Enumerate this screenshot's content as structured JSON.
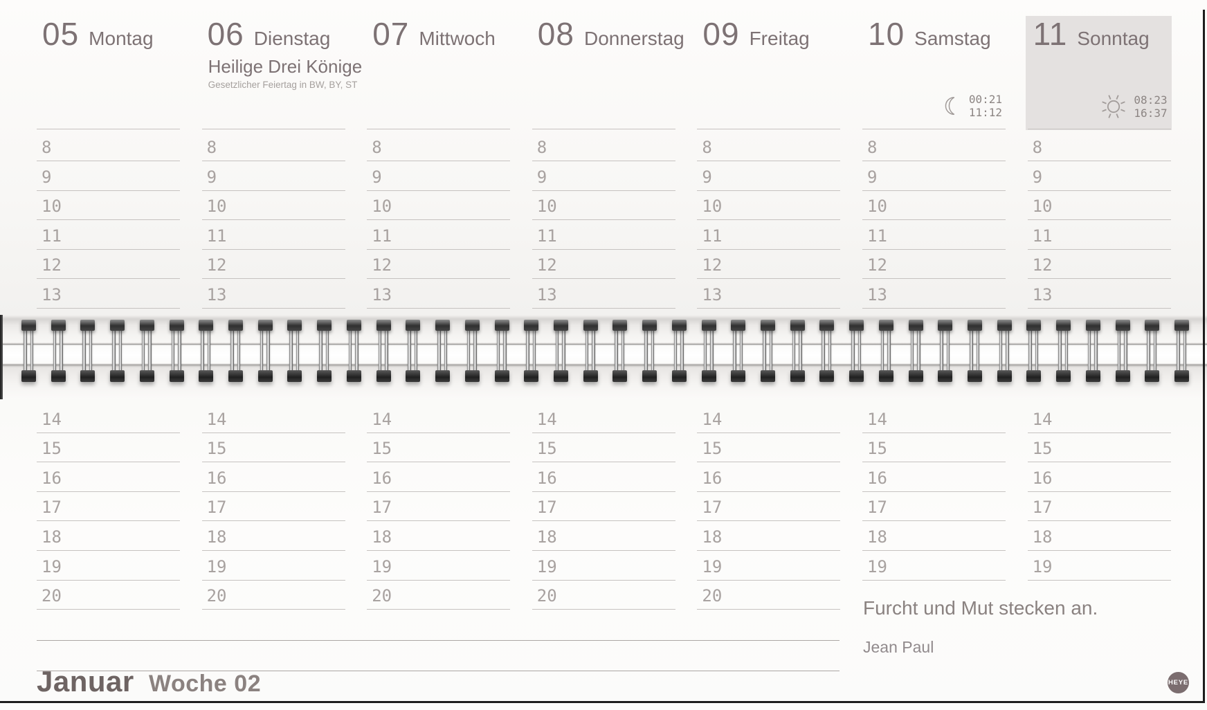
{
  "days": [
    {
      "number": "05",
      "name": "Montag",
      "highlighted": false,
      "afternoon_hours": [
        "14",
        "15",
        "16",
        "17",
        "18",
        "19",
        "20"
      ]
    },
    {
      "number": "06",
      "name": "Dienstag",
      "highlighted": false,
      "holiday": "Heilige Drei Könige",
      "holiday_note": "Gesetzlicher Feiertag in BW, BY, ST",
      "afternoon_hours": [
        "14",
        "15",
        "16",
        "17",
        "18",
        "19",
        "20"
      ]
    },
    {
      "number": "07",
      "name": "Mittwoch",
      "highlighted": false,
      "afternoon_hours": [
        "14",
        "15",
        "16",
        "17",
        "18",
        "19",
        "20"
      ]
    },
    {
      "number": "08",
      "name": "Donnerstag",
      "highlighted": false,
      "afternoon_hours": [
        "14",
        "15",
        "16",
        "17",
        "18",
        "19",
        "20"
      ]
    },
    {
      "number": "09",
      "name": "Freitag",
      "highlighted": false,
      "afternoon_hours": [
        "14",
        "15",
        "16",
        "17",
        "18",
        "19",
        "20"
      ]
    },
    {
      "number": "10",
      "name": "Samstag",
      "highlighted": false,
      "astro": {
        "icon": "moon-icon",
        "times": [
          "00:21",
          "11:12"
        ]
      },
      "afternoon_hours": [
        "14",
        "15",
        "16",
        "17",
        "18",
        "19"
      ]
    },
    {
      "number": "11",
      "name": "Sonntag",
      "highlighted": true,
      "astro": {
        "icon": "sun-icon",
        "times": [
          "08:23",
          "16:37"
        ]
      },
      "afternoon_hours": [
        "14",
        "15",
        "16",
        "17",
        "18",
        "19"
      ]
    }
  ],
  "morning_hours": [
    "8",
    "9",
    "10",
    "11",
    "12",
    "13"
  ],
  "quote": {
    "text": "Furcht und Mut stecken an.",
    "author": "Jean Paul"
  },
  "footer": {
    "month": "Januar",
    "week": "Woche 02",
    "logo": "HEYE"
  },
  "colors": {
    "highlight_box": "#e4e1e0",
    "day_text": "#7d7274",
    "hour_text": "#a8a2a0",
    "grid_line": "#c6c2c0",
    "quote_text": "#8a8280",
    "page_edge": "#1d1d1d",
    "logo_bg": "#7b6d6f"
  }
}
